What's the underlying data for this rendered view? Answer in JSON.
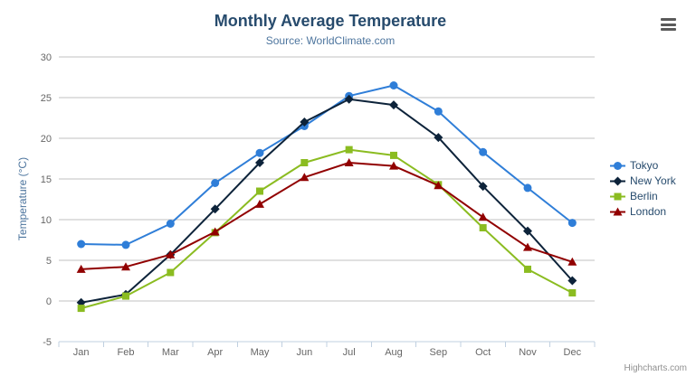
{
  "chart": {
    "title": "Monthly Average Temperature",
    "subtitle": "Source: WorldClimate.com",
    "credits": "Highcharts.com"
  },
  "chart_data": {
    "type": "line",
    "title": "Monthly Average Temperature",
    "subtitle": "Source: WorldClimate.com",
    "categories": [
      "Jan",
      "Feb",
      "Mar",
      "Apr",
      "May",
      "Jun",
      "Jul",
      "Aug",
      "Sep",
      "Oct",
      "Nov",
      "Dec"
    ],
    "series": [
      {
        "name": "Tokyo",
        "color": "#2f7ed8",
        "marker": "circle",
        "values": [
          7.0,
          6.9,
          9.5,
          14.5,
          18.2,
          21.5,
          25.2,
          26.5,
          23.3,
          18.3,
          13.9,
          9.6
        ]
      },
      {
        "name": "New York",
        "color": "#0d233a",
        "marker": "diamond",
        "values": [
          -0.2,
          0.8,
          5.7,
          11.3,
          17.0,
          22.0,
          24.8,
          24.1,
          20.1,
          14.1,
          8.6,
          2.5
        ]
      },
      {
        "name": "Berlin",
        "color": "#8bbc21",
        "marker": "square",
        "values": [
          -0.9,
          0.6,
          3.5,
          8.4,
          13.5,
          17.0,
          18.6,
          17.9,
          14.3,
          9.0,
          3.9,
          1.0
        ]
      },
      {
        "name": "London",
        "color": "#910000",
        "marker": "triangle",
        "values": [
          3.9,
          4.2,
          5.7,
          8.5,
          11.9,
          15.2,
          17.0,
          16.6,
          14.2,
          10.3,
          6.6,
          4.8
        ]
      }
    ],
    "xlabel": "",
    "ylabel": "Temperature (°C)",
    "ylim": [
      -5,
      30
    ],
    "ytick_step": 5,
    "grid": true,
    "legend_position": "right",
    "style": {
      "grid_color": "#c0c0c0",
      "axis_line_color": "#c0d0e0",
      "tick_label_color": "#666666",
      "axis_title_color": "#4d759e",
      "title_color": "#274b6d",
      "subtitle_color": "#4d759e",
      "legend_text_color": "#274b6d",
      "credits_color": "#909090"
    }
  }
}
